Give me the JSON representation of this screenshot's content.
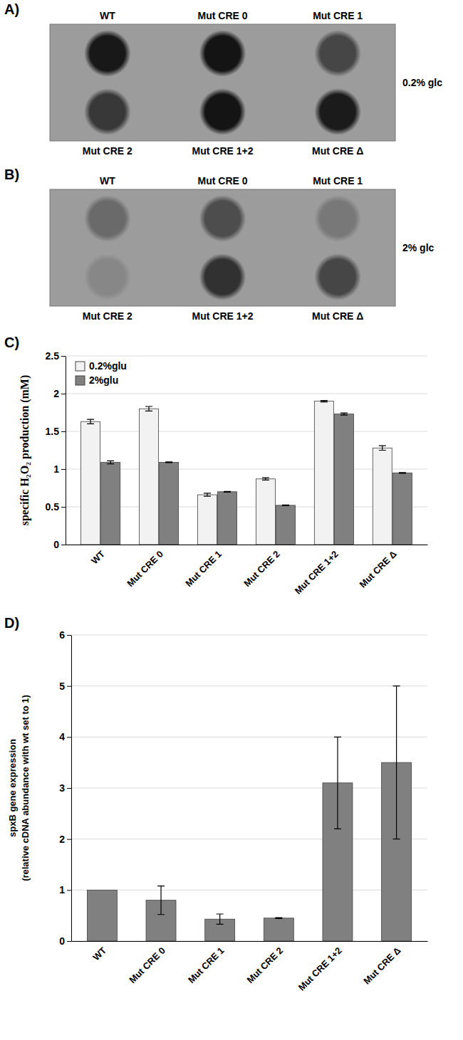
{
  "chart_data": [
    {
      "panel": "A)",
      "type": "spot_plate",
      "annotation": "0.2% glc",
      "categories": [
        "WT",
        "Mut CRE 0",
        "Mut CRE 1",
        "Mut CRE 2",
        "Mut CRE 1+2",
        "Mut CRE Δ"
      ],
      "values": [
        0.92,
        0.95,
        0.6,
        0.7,
        0.95,
        0.9
      ]
    },
    {
      "panel": "B)",
      "type": "spot_plate",
      "annotation": "2% glc",
      "categories": [
        "WT",
        "Mut CRE 0",
        "Mut CRE 1",
        "Mut CRE 2",
        "Mut CRE 1+2",
        "Mut CRE Δ"
      ],
      "values": [
        0.35,
        0.55,
        0.25,
        0.15,
        0.75,
        0.6
      ]
    },
    {
      "panel": "C)",
      "type": "bar",
      "categories": [
        "WT",
        "Mut CRE 0",
        "Mut CRE 1",
        "Mut CRE 2",
        "Mut CRE 1+2",
        "Mut CRE Δ"
      ],
      "series": [
        {
          "name": "0.2%glu",
          "color": "#f2f2f2",
          "values": [
            1.63,
            1.8,
            0.66,
            0.87,
            1.9,
            1.28
          ],
          "errors": [
            0.03,
            0.03,
            0.02,
            0.015,
            0.01,
            0.03
          ]
        },
        {
          "name": "2%glu",
          "color": "#808080",
          "values": [
            1.09,
            1.09,
            0.7,
            0.52,
            1.73,
            0.95
          ],
          "errors": [
            0.02,
            0.005,
            0.005,
            0.005,
            0.015,
            0.005
          ]
        }
      ],
      "ylabel": "specific H₂O₂ production (mM)",
      "ylim": [
        0,
        2.5
      ],
      "yticks": [
        0,
        0.5,
        1,
        1.5,
        2,
        2.5
      ],
      "grid": true,
      "legend": "top-left"
    },
    {
      "panel": "D)",
      "type": "bar",
      "categories": [
        "WT",
        "Mut CRE 0",
        "Mut CRE 1",
        "Mut CRE 2",
        "Mut CRE 1+2",
        "Mut CRE Δ"
      ],
      "values": [
        1,
        0.8,
        0.43,
        0.45,
        3.1,
        3.5
      ],
      "errors": [
        null,
        0.28,
        0.1,
        0.01,
        0.9,
        1.5
      ],
      "color": "#808080",
      "ylabel": [
        "spxB  gene expression",
        "(relative cDNA  abundance with wt set to 1)"
      ],
      "ylim": [
        0,
        6
      ],
      "yticks": [
        0,
        1,
        2,
        3,
        4,
        5,
        6
      ],
      "grid": true
    }
  ]
}
